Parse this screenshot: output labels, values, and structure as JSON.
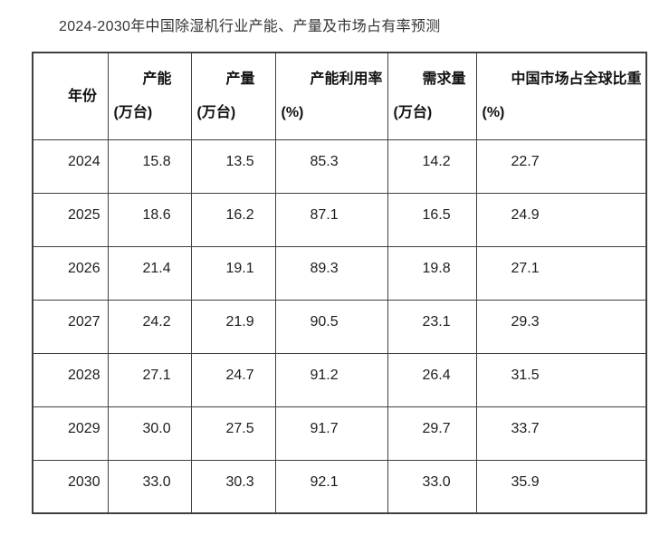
{
  "doc": {
    "title": "2024-2030年中国除湿机行业产能、产量及市场占有率预测"
  },
  "table": {
    "columns": [
      {
        "id": "year",
        "line1": "年份",
        "line2": ""
      },
      {
        "id": "capacity",
        "line1": "产能",
        "line2": "(万台)"
      },
      {
        "id": "output",
        "line1": "产量",
        "line2": "(万台)"
      },
      {
        "id": "utilization",
        "line1": "产能利用率",
        "line2": "(%)"
      },
      {
        "id": "demand",
        "line1": "需求量",
        "line2": "(万台)"
      },
      {
        "id": "globalShare",
        "line1": "中国市场占全球比重",
        "line2": "(%)"
      }
    ],
    "rows": [
      [
        "2024",
        "15.8",
        "13.5",
        "85.3",
        "14.2",
        "22.7"
      ],
      [
        "2025",
        "18.6",
        "16.2",
        "87.1",
        "16.5",
        "24.9"
      ],
      [
        "2026",
        "21.4",
        "19.1",
        "89.3",
        "19.8",
        "27.1"
      ],
      [
        "2027",
        "24.2",
        "21.9",
        "90.5",
        "23.1",
        "29.3"
      ],
      [
        "2028",
        "27.1",
        "24.7",
        "91.2",
        "26.4",
        "31.5"
      ],
      [
        "2029",
        "30.0",
        "27.5",
        "91.7",
        "29.7",
        "33.7"
      ],
      [
        "2030",
        "33.0",
        "30.3",
        "92.1",
        "33.0",
        "35.9"
      ]
    ]
  }
}
